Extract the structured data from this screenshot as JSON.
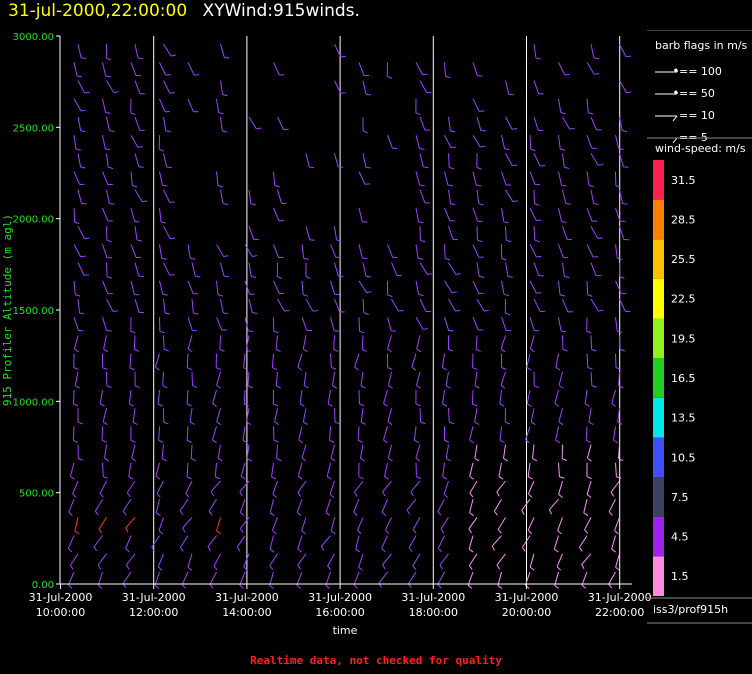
{
  "header": {
    "timestamp": "31-jul-2000,22:00:00",
    "plot_name": "XYWind:915winds."
  },
  "colors": {
    "timestamp": "#ffff00",
    "y_axis": "#20e020",
    "barb": "#a040ff",
    "barb_strong": "#ff3030",
    "barb_light": "#ff90ff",
    "grid": "#ffffff"
  },
  "chart_data": {
    "type": "wind-barb",
    "title": "",
    "xlabel": "time",
    "ylabel": "915 Profiler Altitude (m agl)",
    "ylim": [
      0,
      3000
    ],
    "yticks": [
      "0.00",
      "500.00",
      "1000.00",
      "1500.00",
      "2000.00",
      "2500.00",
      "3000.00"
    ],
    "xticks": [
      {
        "date": "31-Jul-2000",
        "time": "10:00:00"
      },
      {
        "date": "31-Jul-2000",
        "time": "12:00:00"
      },
      {
        "date": "31-Jul-2000",
        "time": "14:00:00"
      },
      {
        "date": "31-Jul-2000",
        "time": "16:00:00"
      },
      {
        "date": "31-Jul-2000",
        "time": "18:00:00"
      },
      {
        "date": "31-Jul-2000",
        "time": "20:00:00"
      },
      {
        "date": "31-Jul-2000",
        "time": "22:00:00"
      }
    ],
    "xlim": [
      "31-Jul-2000 10:00:00",
      "31-Jul-2000 22:00:00"
    ],
    "grid": true,
    "colorbar": {
      "title": "wind-speed: m/s",
      "bins": [
        {
          "label": "1.5",
          "color": "#ff88e0"
        },
        {
          "label": "4.5",
          "color": "#a020f0"
        },
        {
          "label": "7.5",
          "color": "#404060"
        },
        {
          "label": "10.5",
          "color": "#4050ff"
        },
        {
          "label": "13.5",
          "color": "#00e8e8"
        },
        {
          "label": "16.5",
          "color": "#20d020"
        },
        {
          "label": "19.5",
          "color": "#90f020"
        },
        {
          "label": "22.5",
          "color": "#ffff00"
        },
        {
          "label": "25.5",
          "color": "#ffc000"
        },
        {
          "label": "28.5",
          "color": "#ff8000"
        },
        {
          "label": "31.5",
          "color": "#ff2050"
        }
      ]
    },
    "barb_legend": {
      "title": "barb flags in m/s",
      "items": [
        "== 100",
        "== 50",
        "== 10",
        "== 5"
      ]
    }
  },
  "footer": {
    "quality_note": "Realtime data, not checked for quality",
    "station": "iss3/prof915h"
  }
}
